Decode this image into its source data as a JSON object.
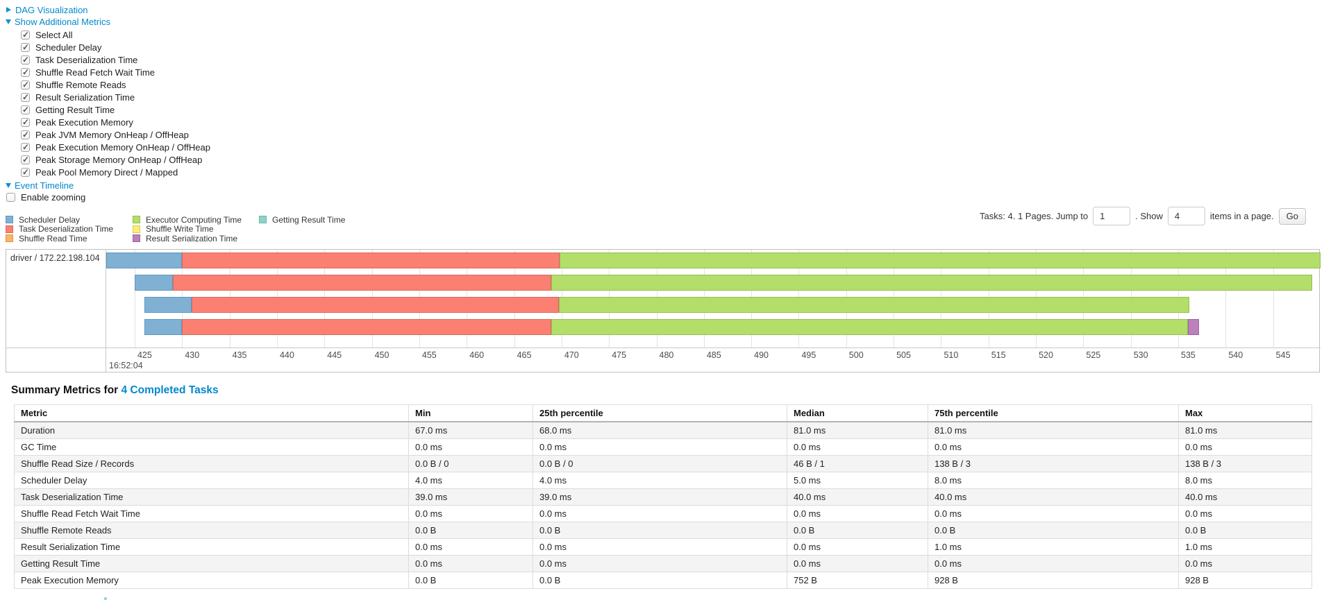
{
  "toggles": {
    "dag": "DAG Visualization",
    "additional_metrics": "Show Additional Metrics",
    "event_timeline": "Event Timeline"
  },
  "metric_checkboxes": [
    "Select All",
    "Scheduler Delay",
    "Task Deserialization Time",
    "Shuffle Read Fetch Wait Time",
    "Shuffle Remote Reads",
    "Result Serialization Time",
    "Getting Result Time",
    "Peak Execution Memory",
    "Peak JVM Memory OnHeap / OffHeap",
    "Peak Execution Memory OnHeap / OffHeap",
    "Peak Storage Memory OnHeap / OffHeap",
    "Peak Pool Memory Direct / Mapped"
  ],
  "enable_zooming_label": "Enable zooming",
  "pagination": {
    "prefix_text": "Tasks: 4. 1 Pages. Jump to",
    "jump_value": "1",
    "mid_text": ". Show",
    "show_value": "4",
    "suffix_text": "items in a page.",
    "go_label": "Go"
  },
  "colors": {
    "scheduler_delay": {
      "fill": "#80B1D3",
      "stroke": "#5E97C2"
    },
    "task_deserialization": {
      "fill": "#FB8072",
      "stroke": "#D96A5E"
    },
    "shuffle_read": {
      "fill": "#FDB462",
      "stroke": "#D9954E"
    },
    "executor_computing": {
      "fill": "#B3DE69",
      "stroke": "#95BD53"
    },
    "shuffle_write": {
      "fill": "#FFED6F",
      "stroke": "#D9C95A"
    },
    "result_serialization": {
      "fill": "#BC80BD",
      "stroke": "#9C659D"
    },
    "getting_result": {
      "fill": "#8DD3C7",
      "stroke": "#72B3A7"
    }
  },
  "legend": {
    "columns": [
      [
        {
          "key": "scheduler_delay",
          "label": "Scheduler Delay"
        },
        {
          "key": "task_deserialization",
          "label": "Task Deserialization Time"
        },
        {
          "key": "shuffle_read",
          "label": "Shuffle Read Time"
        }
      ],
      [
        {
          "key": "executor_computing",
          "label": "Executor Computing Time"
        },
        {
          "key": "shuffle_write",
          "label": "Shuffle Write Time"
        },
        {
          "key": "result_serialization",
          "label": "Result Serialization Time"
        }
      ],
      [
        {
          "key": "getting_result",
          "label": "Getting Result Time"
        }
      ]
    ]
  },
  "chart_data": {
    "type": "timeline",
    "row_label": "driver / 172.22.198.104",
    "major_tick_label": "16:52:04",
    "x_unit": "ms within second 16:52:04",
    "x_domain": [
      422,
      550
    ],
    "tick_start": 425,
    "tick_step": 5,
    "tick_end": 550,
    "tasks": [
      {
        "segments": [
          {
            "type": "scheduler_delay",
            "start": 422,
            "end": 430
          },
          {
            "type": "task_deserialization",
            "start": 430,
            "end": 469.8
          },
          {
            "type": "executor_computing",
            "start": 469.8,
            "end": 550
          }
        ]
      },
      {
        "segments": [
          {
            "type": "scheduler_delay",
            "start": 425,
            "end": 429
          },
          {
            "type": "task_deserialization",
            "start": 429,
            "end": 468.9
          },
          {
            "type": "executor_computing",
            "start": 468.9,
            "end": 549.1
          }
        ]
      },
      {
        "segments": [
          {
            "type": "scheduler_delay",
            "start": 426,
            "end": 431
          },
          {
            "type": "task_deserialization",
            "start": 431,
            "end": 469.7
          },
          {
            "type": "executor_computing",
            "start": 469.7,
            "end": 536.2
          }
        ]
      },
      {
        "segments": [
          {
            "type": "scheduler_delay",
            "start": 426,
            "end": 430
          },
          {
            "type": "task_deserialization",
            "start": 430,
            "end": 468.9
          },
          {
            "type": "executor_computing",
            "start": 468.9,
            "end": 536
          },
          {
            "type": "result_serialization",
            "start": 536,
            "end": 537.2
          }
        ]
      }
    ]
  },
  "summary": {
    "title_prefix": "Summary Metrics for ",
    "title_link": "4 Completed Tasks",
    "columns": [
      "Metric",
      "Min",
      "25th percentile",
      "Median",
      "75th percentile",
      "Max"
    ],
    "rows": [
      {
        "metric": "Duration",
        "values": [
          "67.0 ms",
          "68.0 ms",
          "81.0 ms",
          "81.0 ms",
          "81.0 ms"
        ]
      },
      {
        "metric": "GC Time",
        "values": [
          "0.0 ms",
          "0.0 ms",
          "0.0 ms",
          "0.0 ms",
          "0.0 ms"
        ]
      },
      {
        "metric": "Shuffle Read Size / Records",
        "values": [
          "0.0 B / 0",
          "0.0 B / 0",
          "46 B / 1",
          "138 B / 3",
          "138 B / 3"
        ]
      },
      {
        "metric": "Scheduler Delay",
        "values": [
          "4.0 ms",
          "4.0 ms",
          "5.0 ms",
          "8.0 ms",
          "8.0 ms"
        ]
      },
      {
        "metric": "Task Deserialization Time",
        "values": [
          "39.0 ms",
          "39.0 ms",
          "40.0 ms",
          "40.0 ms",
          "40.0 ms"
        ]
      },
      {
        "metric": "Shuffle Read Fetch Wait Time",
        "values": [
          "0.0 ms",
          "0.0 ms",
          "0.0 ms",
          "0.0 ms",
          "0.0 ms"
        ]
      },
      {
        "metric": "Shuffle Remote Reads",
        "values": [
          "0.0 B",
          "0.0 B",
          "0.0 B",
          "0.0 B",
          "0.0 B"
        ]
      },
      {
        "metric": "Result Serialization Time",
        "values": [
          "0.0 ms",
          "0.0 ms",
          "0.0 ms",
          "1.0 ms",
          "1.0 ms"
        ]
      },
      {
        "metric": "Getting Result Time",
        "values": [
          "0.0 ms",
          "0.0 ms",
          "0.0 ms",
          "0.0 ms",
          "0.0 ms"
        ]
      },
      {
        "metric": "Peak Execution Memory",
        "values": [
          "0.0 B",
          "0.0 B",
          "752 B",
          "928 B",
          "928 B"
        ]
      }
    ]
  }
}
